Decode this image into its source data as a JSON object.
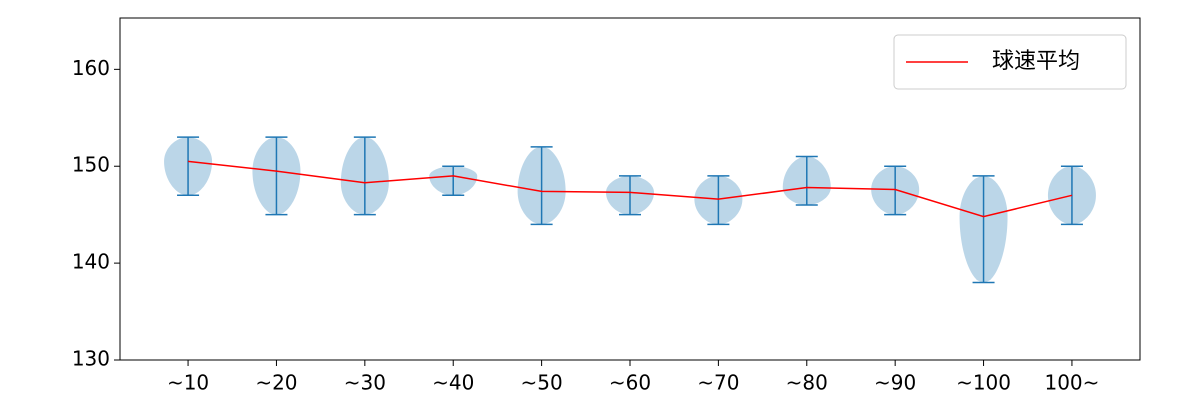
{
  "chart_data": {
    "type": "violin",
    "categories": [
      "~10",
      "~20",
      "~30",
      "~40",
      "~50",
      "~60",
      "~70",
      "~80",
      "~90",
      "~100",
      "100~"
    ],
    "min": [
      147,
      145,
      145,
      147,
      144,
      145,
      144,
      146,
      145,
      138,
      144
    ],
    "max": [
      153,
      153,
      153,
      150,
      152,
      149,
      149,
      151,
      150,
      149,
      150
    ],
    "violin_color": "#1f77b4",
    "series": [
      {
        "name": "球速平均",
        "color": "#ff0000",
        "values": [
          150.5,
          149.5,
          148.3,
          149,
          147.4,
          147.3,
          146.6,
          147.8,
          147.6,
          144.8,
          147
        ]
      }
    ],
    "ylim": [
      130,
      165.3
    ],
    "yticks": [
      130,
      140,
      150,
      160
    ],
    "legend": "upper right"
  }
}
